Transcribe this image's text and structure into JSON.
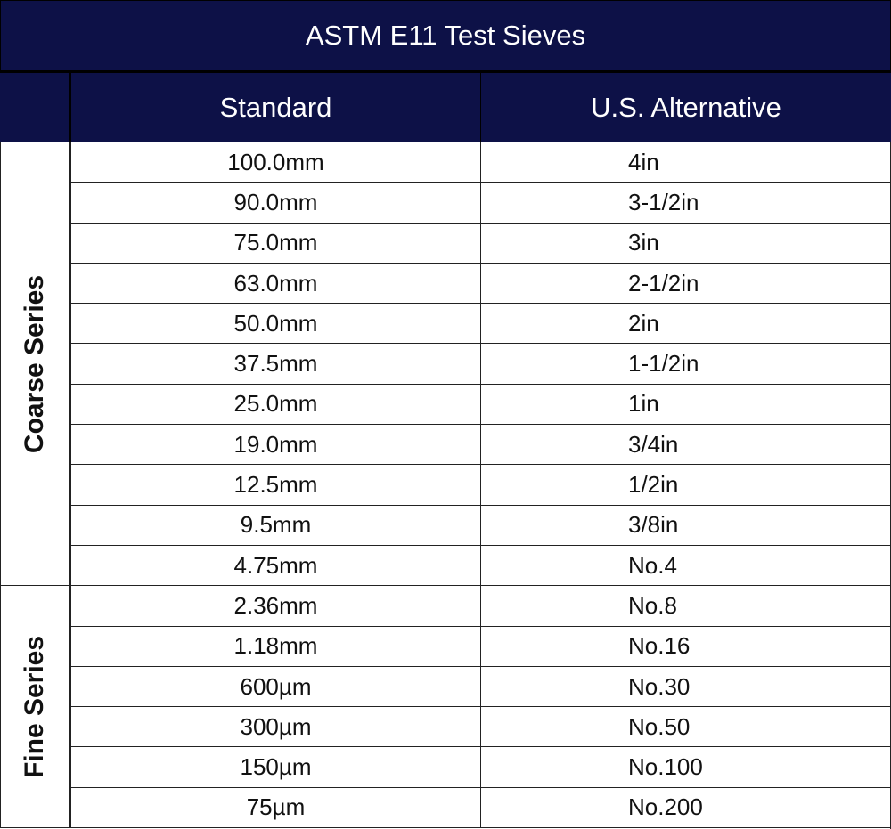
{
  "title": "ASTM E11 Test Sieves",
  "headers": {
    "standard": "Standard",
    "us_alternative": "U.S. Alternative"
  },
  "groups": [
    {
      "label": "Coarse Series",
      "rows": 11
    },
    {
      "label": "Fine Series",
      "rows": 6
    }
  ],
  "rows": [
    {
      "standard": "100.0mm",
      "us": "4in"
    },
    {
      "standard": "90.0mm",
      "us": "3-1/2in"
    },
    {
      "standard": "75.0mm",
      "us": "3in"
    },
    {
      "standard": "63.0mm",
      "us": "2-1/2in"
    },
    {
      "standard": "50.0mm",
      "us": "2in"
    },
    {
      "standard": "37.5mm",
      "us": "1-1/2in"
    },
    {
      "standard": "25.0mm",
      "us": "1in"
    },
    {
      "standard": "19.0mm",
      "us": "3/4in"
    },
    {
      "standard": "12.5mm",
      "us": "1/2in"
    },
    {
      "standard": "9.5mm",
      "us": "3/8in"
    },
    {
      "standard": "4.75mm",
      "us": "No.4"
    },
    {
      "standard": "2.36mm",
      "us": "No.8"
    },
    {
      "standard": "1.18mm",
      "us": "No.16"
    },
    {
      "standard": "600µm",
      "us": "No.30"
    },
    {
      "standard": "300µm",
      "us": "No.50"
    },
    {
      "standard": "150µm",
      "us": "No.100"
    },
    {
      "standard": "75µm",
      "us": "No.200"
    }
  ],
  "colors": {
    "header_bg": "#0d1147",
    "header_text": "#ffffff"
  }
}
